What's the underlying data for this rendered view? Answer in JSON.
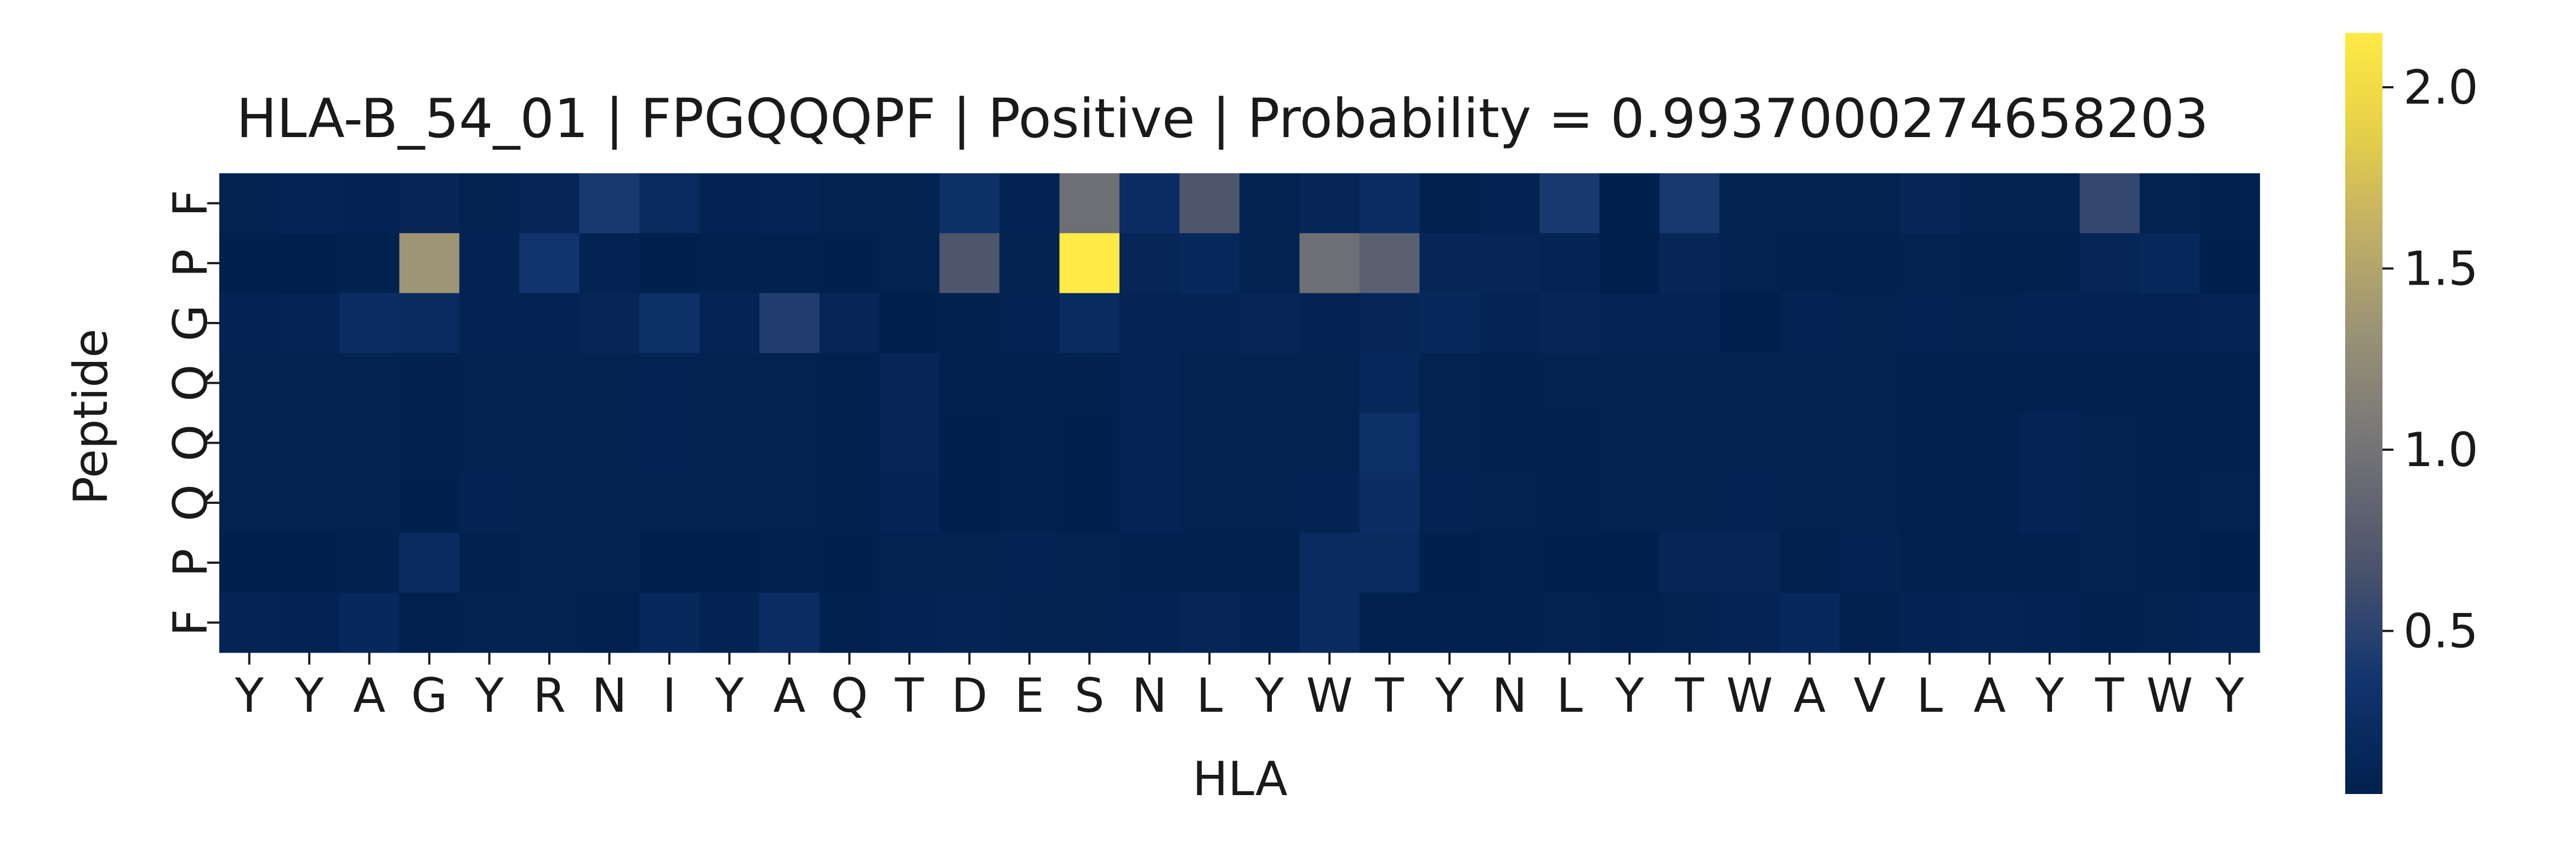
{
  "chart_data": {
    "type": "heatmap",
    "title": "HLA-B_54_01 | FPGQQQPF | Positive | Probability = 0.9937000274658203",
    "xlabel": "HLA",
    "ylabel": "Peptide",
    "x_categories": [
      "Y",
      "Y",
      "A",
      "G",
      "Y",
      "R",
      "N",
      "I",
      "Y",
      "A",
      "Q",
      "T",
      "D",
      "E",
      "S",
      "N",
      "L",
      "Y",
      "W",
      "T",
      "Y",
      "N",
      "L",
      "Y",
      "T",
      "W",
      "A",
      "V",
      "L",
      "A",
      "Y",
      "T",
      "W",
      "Y"
    ],
    "y_categories": [
      "F",
      "P",
      "G",
      "Q",
      "Q",
      "Q",
      "P",
      "F"
    ],
    "colormap": "cividis",
    "colorbar": {
      "ticks": [
        0.5,
        1.0,
        1.5,
        2.0
      ],
      "range": [
        0.05,
        2.15
      ]
    },
    "values": [
      [
        0.08,
        0.12,
        0.1,
        0.15,
        0.08,
        0.15,
        0.4,
        0.22,
        0.1,
        0.12,
        0.08,
        0.08,
        0.3,
        0.1,
        0.95,
        0.25,
        0.7,
        0.08,
        0.15,
        0.25,
        0.06,
        0.1,
        0.4,
        0.03,
        0.4,
        0.08,
        0.08,
        0.08,
        0.15,
        0.08,
        0.08,
        0.55,
        0.08,
        0.06
      ],
      [
        0.03,
        0.04,
        0.06,
        1.35,
        0.1,
        0.35,
        0.1,
        0.05,
        0.07,
        0.06,
        0.04,
        0.08,
        0.7,
        0.08,
        2.15,
        0.15,
        0.18,
        0.08,
        0.95,
        0.8,
        0.15,
        0.15,
        0.12,
        0.04,
        0.15,
        0.08,
        0.06,
        0.06,
        0.08,
        0.06,
        0.07,
        0.15,
        0.18,
        0.05
      ],
      [
        0.1,
        0.12,
        0.25,
        0.22,
        0.1,
        0.1,
        0.15,
        0.3,
        0.12,
        0.45,
        0.15,
        0.05,
        0.07,
        0.1,
        0.22,
        0.12,
        0.12,
        0.15,
        0.1,
        0.15,
        0.18,
        0.12,
        0.15,
        0.12,
        0.12,
        0.05,
        0.1,
        0.08,
        0.1,
        0.08,
        0.1,
        0.1,
        0.1,
        0.12
      ],
      [
        0.08,
        0.08,
        0.08,
        0.07,
        0.08,
        0.08,
        0.08,
        0.1,
        0.08,
        0.08,
        0.06,
        0.15,
        0.06,
        0.07,
        0.06,
        0.12,
        0.08,
        0.08,
        0.08,
        0.18,
        0.08,
        0.06,
        0.08,
        0.08,
        0.08,
        0.08,
        0.08,
        0.08,
        0.07,
        0.07,
        0.07,
        0.06,
        0.07,
        0.07
      ],
      [
        0.08,
        0.08,
        0.08,
        0.06,
        0.08,
        0.08,
        0.08,
        0.1,
        0.08,
        0.08,
        0.06,
        0.15,
        0.05,
        0.07,
        0.05,
        0.12,
        0.08,
        0.08,
        0.08,
        0.3,
        0.08,
        0.06,
        0.07,
        0.08,
        0.08,
        0.08,
        0.08,
        0.08,
        0.07,
        0.07,
        0.12,
        0.08,
        0.07,
        0.07
      ],
      [
        0.08,
        0.08,
        0.08,
        0.05,
        0.1,
        0.08,
        0.08,
        0.08,
        0.08,
        0.08,
        0.06,
        0.12,
        0.05,
        0.07,
        0.05,
        0.12,
        0.08,
        0.08,
        0.1,
        0.25,
        0.1,
        0.08,
        0.06,
        0.08,
        0.08,
        0.1,
        0.08,
        0.08,
        0.07,
        0.07,
        0.12,
        0.08,
        0.07,
        0.08
      ],
      [
        0.05,
        0.05,
        0.07,
        0.22,
        0.06,
        0.08,
        0.08,
        0.05,
        0.05,
        0.07,
        0.05,
        0.08,
        0.08,
        0.1,
        0.08,
        0.06,
        0.06,
        0.06,
        0.22,
        0.2,
        0.05,
        0.06,
        0.05,
        0.05,
        0.15,
        0.15,
        0.06,
        0.1,
        0.06,
        0.06,
        0.06,
        0.08,
        0.07,
        0.05
      ],
      [
        0.12,
        0.1,
        0.18,
        0.06,
        0.08,
        0.08,
        0.06,
        0.18,
        0.1,
        0.25,
        0.06,
        0.1,
        0.12,
        0.08,
        0.08,
        0.1,
        0.15,
        0.1,
        0.22,
        0.06,
        0.07,
        0.06,
        0.08,
        0.06,
        0.08,
        0.12,
        0.18,
        0.07,
        0.1,
        0.12,
        0.1,
        0.06,
        0.08,
        0.12
      ]
    ]
  }
}
